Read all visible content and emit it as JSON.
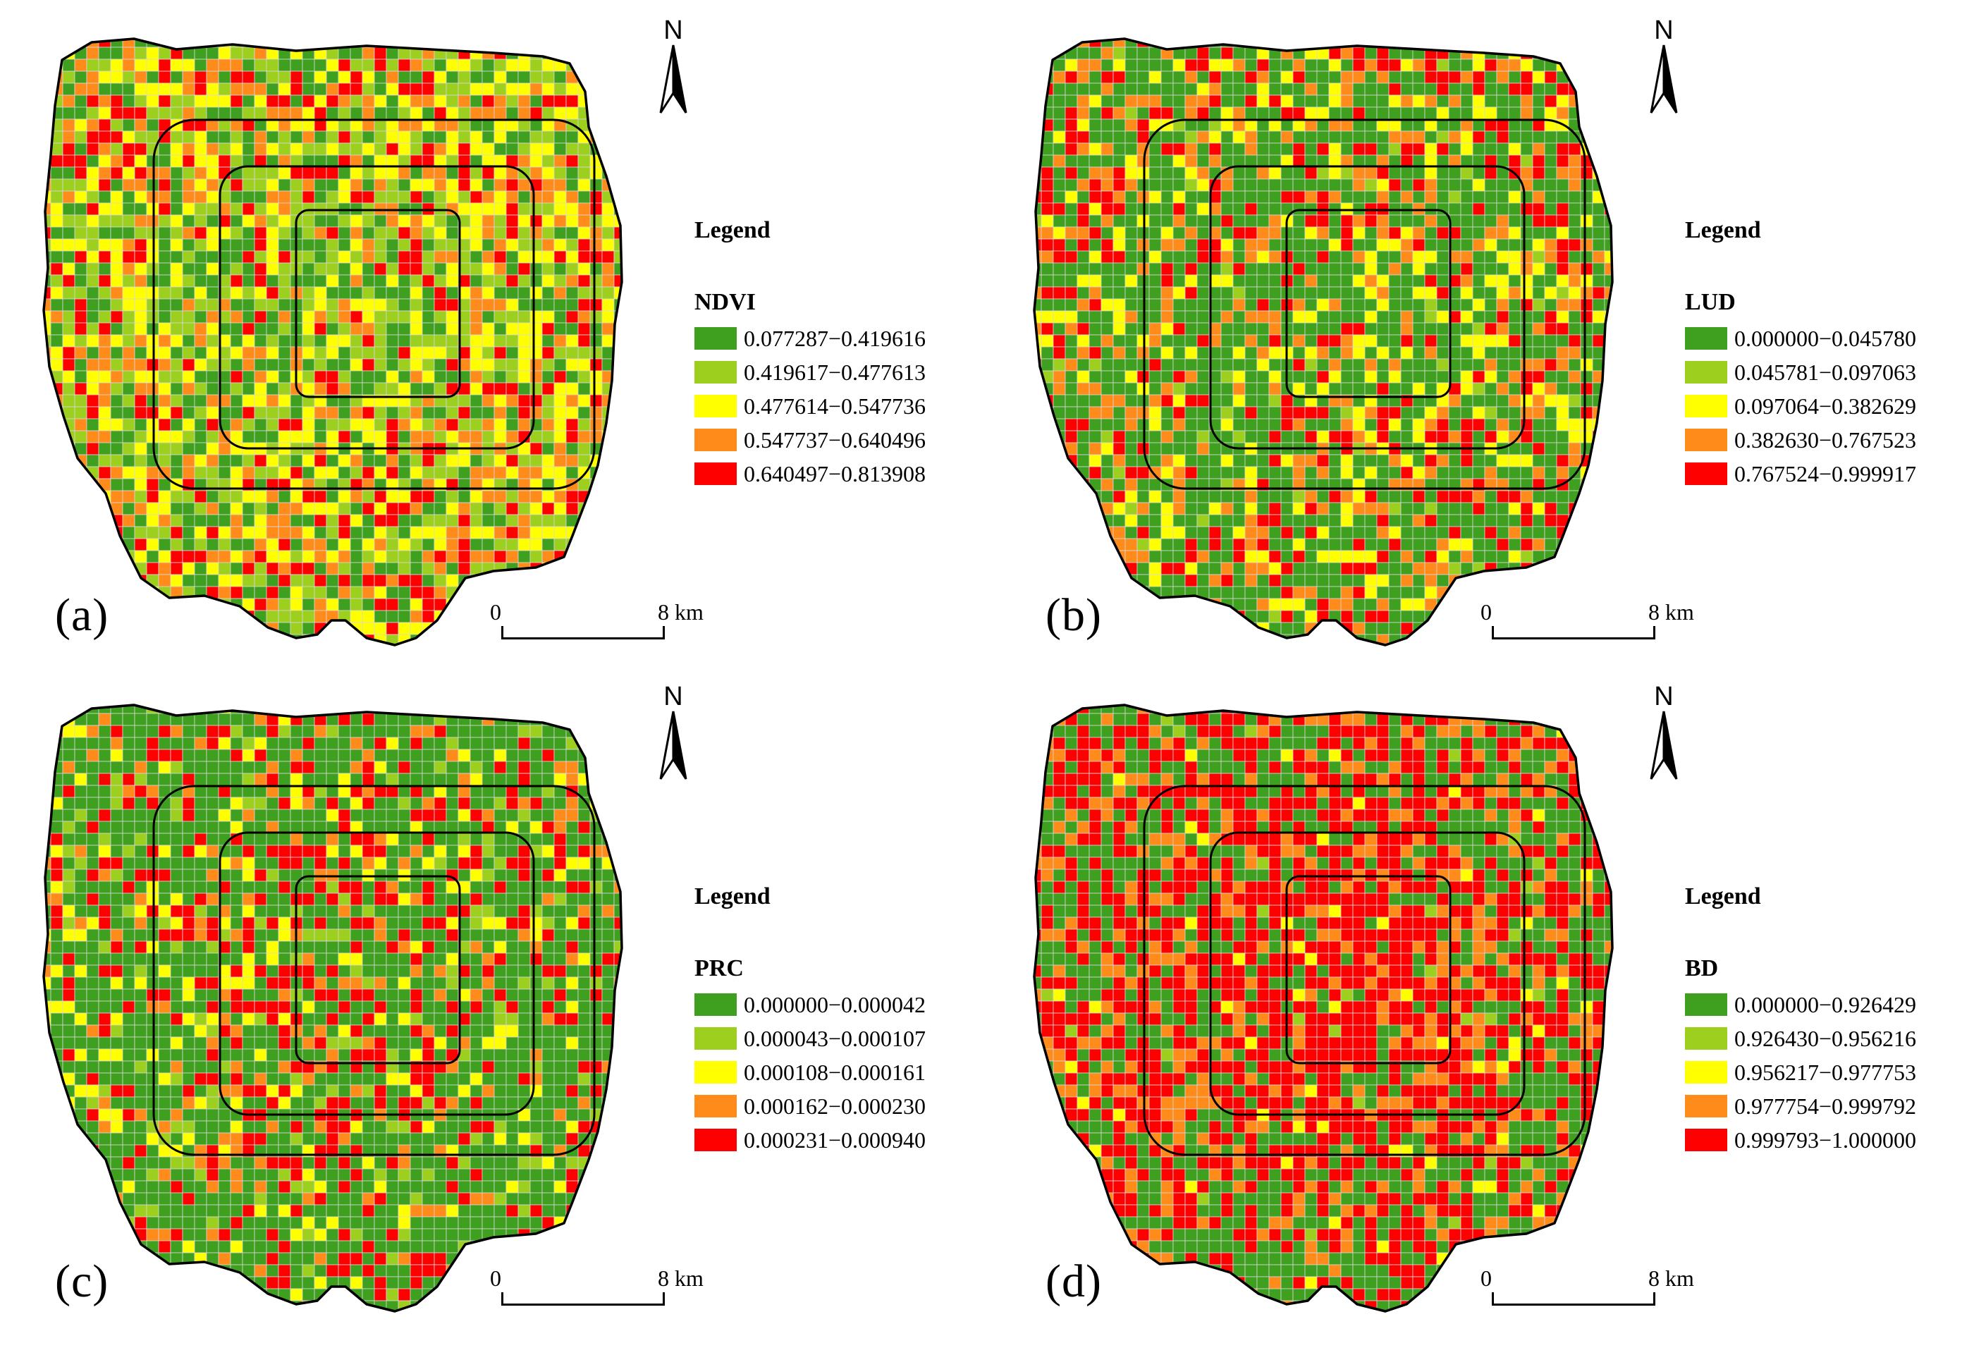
{
  "figure": {
    "legend_title": "Legend",
    "north_label": "N",
    "scale": {
      "start": "0",
      "end": "8 km"
    }
  },
  "colors": {
    "class1": "#3f9f1f",
    "class2": "#9ccf1e",
    "class3": "#ffff00",
    "class4": "#ff8c1a",
    "class5": "#ff0000",
    "boundary": "#000000"
  },
  "panels": [
    {
      "label": "(a)",
      "variable": "NDVI",
      "classes": [
        "0.077287−0.419616",
        "0.419617−0.477613",
        "0.477614−0.547736",
        "0.547737−0.640496",
        "0.640497−0.813908"
      ],
      "class_share": [
        0.27,
        0.26,
        0.25,
        0.13,
        0.09
      ],
      "pattern": "ndvi",
      "seed": 11
    },
    {
      "label": "(b)",
      "variable": "LUD",
      "classes": [
        "0.000000−0.045780",
        "0.045781−0.097063",
        "0.097064−0.382629",
        "0.382630−0.767523",
        "0.767524−0.999917"
      ],
      "class_share": [
        0.56,
        0.04,
        0.16,
        0.11,
        0.13
      ],
      "pattern": "lud",
      "seed": 23
    },
    {
      "label": "(c)",
      "variable": "PRC",
      "classes": [
        "0.000000−0.000042",
        "0.000043−0.000107",
        "0.000108−0.000161",
        "0.000162−0.000230",
        "0.000231−0.000940"
      ],
      "class_share": [
        0.47,
        0.1,
        0.13,
        0.1,
        0.2
      ],
      "pattern": "prc",
      "seed": 37
    },
    {
      "label": "(d)",
      "variable": "BD",
      "classes": [
        "0.000000−0.926429",
        "0.926430−0.956216",
        "0.956217−0.977753",
        "0.977754−0.999792",
        "0.999793−1.000000"
      ],
      "class_share": [
        0.24,
        0.02,
        0.03,
        0.2,
        0.51
      ],
      "pattern": "bd",
      "seed": 53
    }
  ]
}
